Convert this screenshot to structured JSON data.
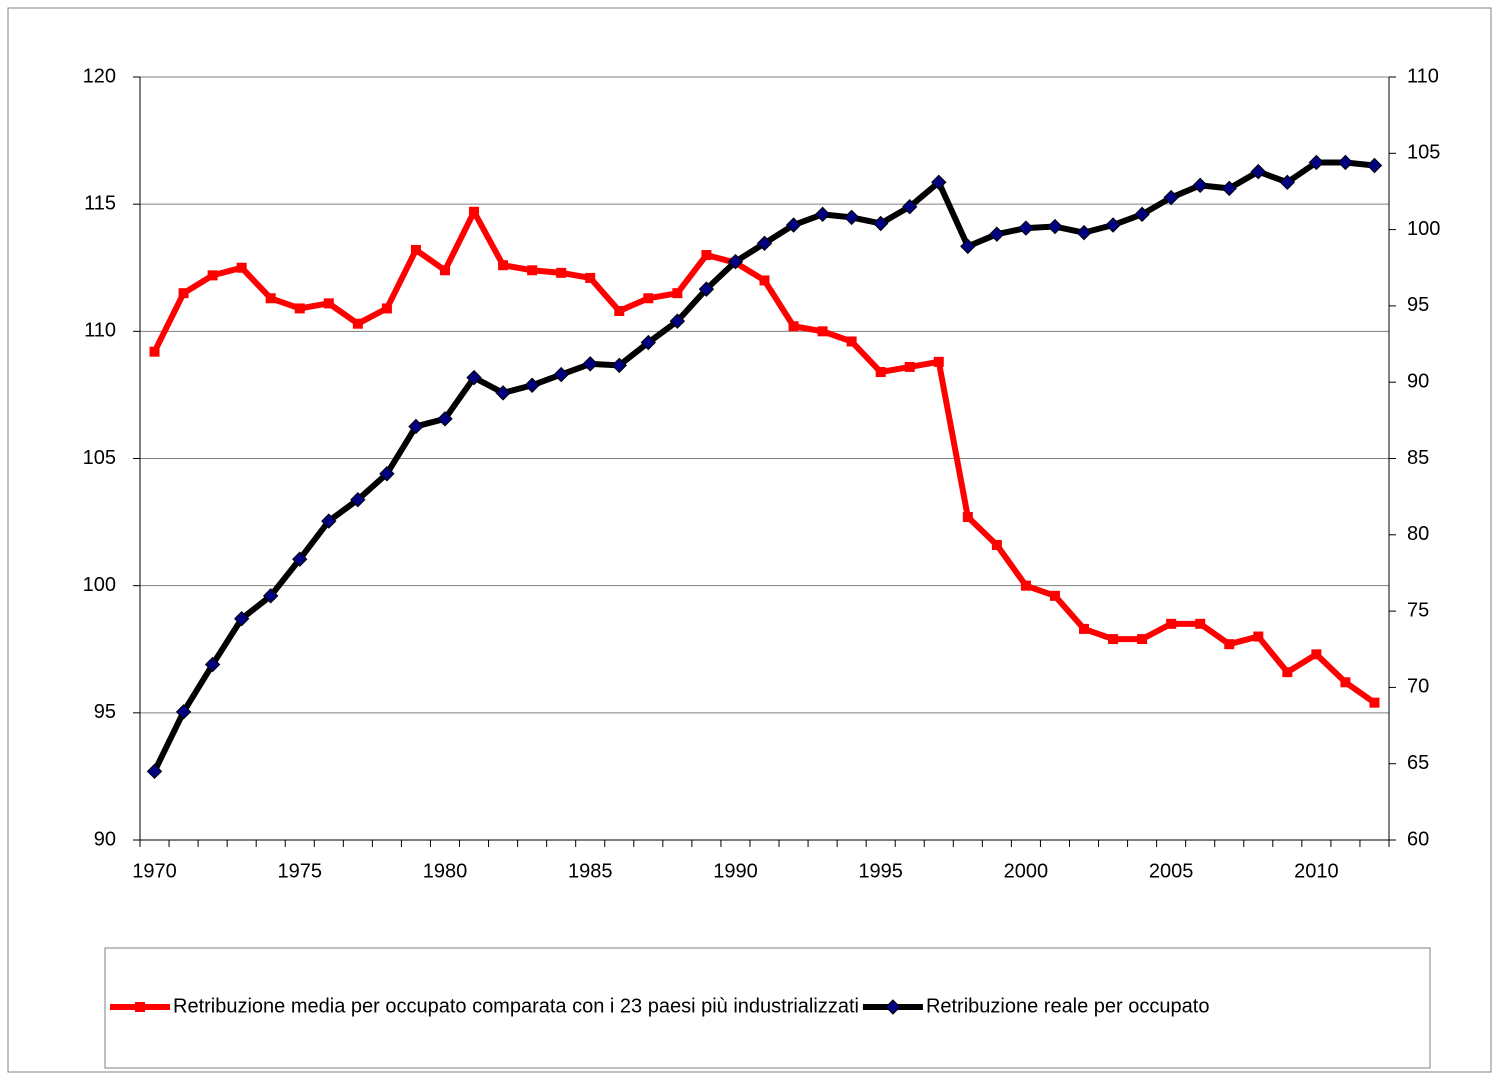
{
  "chart_data": {
    "type": "line",
    "categories": [
      "1970",
      null,
      null,
      null,
      null,
      "1975",
      null,
      null,
      null,
      null,
      "1980",
      null,
      null,
      null,
      null,
      "1985",
      null,
      null,
      null,
      null,
      "1990",
      null,
      null,
      null,
      null,
      "1995",
      null,
      null,
      null,
      null,
      "2000",
      null,
      null,
      null,
      null,
      "2005",
      null,
      null,
      null,
      null,
      "2010",
      null,
      null
    ],
    "series": [
      {
        "name": "Retribuzione media per occupato comparata con i 23 paesi più industrializzati",
        "color": "#ff0000",
        "marker": "square",
        "axis": "y",
        "values": [
          109.2,
          111.5,
          112.2,
          112.5,
          111.3,
          110.9,
          111.1,
          110.3,
          110.9,
          113.2,
          112.4,
          114.7,
          112.6,
          112.4,
          112.3,
          112.1,
          110.8,
          111.3,
          111.5,
          113.0,
          112.7,
          112.0,
          110.2,
          110.0,
          109.6,
          108.4,
          108.6,
          108.8,
          102.7,
          101.6,
          100.0,
          99.6,
          98.3,
          97.9,
          97.9,
          98.5,
          98.5,
          97.7,
          98.0,
          96.6,
          97.3,
          96.2,
          95.4
        ]
      },
      {
        "name": "Retribuzione reale per occupato",
        "color": "#000000",
        "marker_color": "#000080",
        "marker": "diamond",
        "axis": "y2",
        "values": [
          64.5,
          68.4,
          71.5,
          74.5,
          76.0,
          78.4,
          80.9,
          82.3,
          84.0,
          87.1,
          87.6,
          90.3,
          89.3,
          89.8,
          90.5,
          91.2,
          91.1,
          92.6,
          94.0,
          96.1,
          97.9,
          99.1,
          100.3,
          101.0,
          100.8,
          100.4,
          101.5,
          103.1,
          98.9,
          99.7,
          100.1,
          100.2,
          99.8,
          100.3,
          101.0,
          102.1,
          102.9,
          102.7,
          103.8,
          103.1,
          104.4,
          104.4,
          104.2
        ]
      }
    ],
    "ylim": [
      90,
      120
    ],
    "yticks": [
      90,
      95,
      100,
      105,
      110,
      115,
      120
    ],
    "y2lim": [
      60,
      110
    ],
    "y2ticks": [
      60,
      65,
      70,
      75,
      80,
      85,
      90,
      95,
      100,
      105,
      110
    ],
    "grid": true,
    "legend": "bottom"
  }
}
